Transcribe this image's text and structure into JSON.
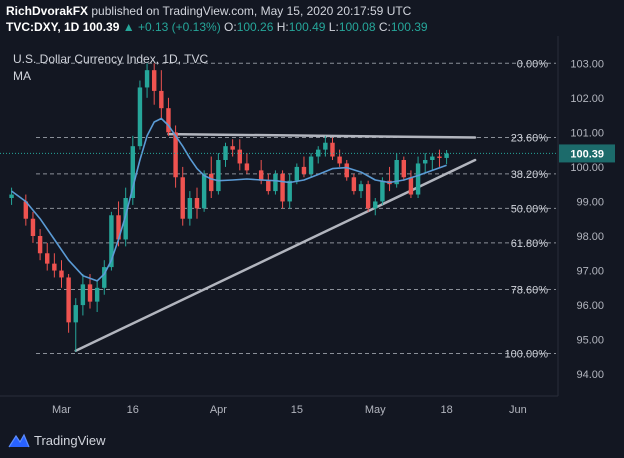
{
  "publish": {
    "author": "RichDvorakFX",
    "text": "published on TradingView.com, May 15, 2020 20:17:59 UTC"
  },
  "quote": {
    "symbol": "TVC:DXY, 1D",
    "last": "100.39",
    "change": "▲ +0.13 (+0.13%)",
    "o_label": "O:",
    "o": "100.26",
    "h_label": "H:",
    "h": "100.49",
    "l_label": "L:",
    "l": "100.08",
    "c_label": "C:",
    "c": "100.39"
  },
  "footer": {
    "brand": "TradingView"
  },
  "colors": {
    "bg": "#131722",
    "up": "#26a69a",
    "down": "#ef5350",
    "ma": "#5b9bd5",
    "fib": "#8a8f98",
    "trend": "#b2b5be",
    "text": "#d1d4dc",
    "axis": "#b2b5be",
    "last_price_bg": "#1c6b6b"
  },
  "chart_data": {
    "type": "candlestick",
    "title": "U.S. Dollar Currency Index, 1D, TVC",
    "legend_ma": "MA",
    "y_ticks": [
      "103.00",
      "102.00",
      "101.00",
      "100.00",
      "99.00",
      "98.00",
      "97.00",
      "96.00",
      "95.00",
      "94.00"
    ],
    "y_tick_values": [
      103,
      102,
      101,
      100,
      99,
      98,
      97,
      96,
      95,
      94
    ],
    "ylim": [
      93.6,
      103.5
    ],
    "x_ticks": [
      {
        "label": "Mar",
        "i": 7
      },
      {
        "label": "16",
        "i": 17
      },
      {
        "label": "Apr",
        "i": 29
      },
      {
        "label": "15",
        "i": 40
      },
      {
        "label": "May",
        "i": 51
      },
      {
        "label": "18",
        "i": 61
      },
      {
        "label": "Jun",
        "i": 71
      }
    ],
    "n_slots": 76,
    "last_price": 100.39,
    "last_price_label": "100.39",
    "fib_levels": [
      {
        "label": "0.00%",
        "value": 103.0
      },
      {
        "label": "23.60%",
        "value": 100.85
      },
      {
        "label": "38.20%",
        "value": 99.8
      },
      {
        "label": "50.00%",
        "value": 98.8
      },
      {
        "label": "61.80%",
        "value": 97.8
      },
      {
        "label": "78.60%",
        "value": 96.45
      },
      {
        "label": "100.00%",
        "value": 94.6
      }
    ],
    "trendlines": [
      {
        "name": "resistance",
        "from": {
          "i": 22,
          "v": 100.95
        },
        "to": {
          "i": 65,
          "v": 100.85
        }
      },
      {
        "name": "support",
        "from": {
          "i": 9,
          "v": 94.68
        },
        "to": {
          "i": 65,
          "v": 100.2
        }
      }
    ],
    "candles": [
      {
        "i": 0,
        "o": 99.1,
        "h": 99.4,
        "l": 98.9,
        "c": 99.2
      },
      {
        "i": 2,
        "o": 99.0,
        "h": 99.2,
        "l": 98.3,
        "c": 98.5
      },
      {
        "i": 3,
        "o": 98.5,
        "h": 98.7,
        "l": 97.8,
        "c": 98.0
      },
      {
        "i": 4,
        "o": 98.0,
        "h": 98.2,
        "l": 97.3,
        "c": 97.5
      },
      {
        "i": 5,
        "o": 97.5,
        "h": 97.8,
        "l": 97.0,
        "c": 97.2
      },
      {
        "i": 6,
        "o": 97.2,
        "h": 97.5,
        "l": 96.8,
        "c": 97.0
      },
      {
        "i": 7,
        "o": 97.0,
        "h": 97.3,
        "l": 96.5,
        "c": 96.8
      },
      {
        "i": 8,
        "o": 96.8,
        "h": 96.9,
        "l": 95.2,
        "c": 95.5
      },
      {
        "i": 9,
        "o": 95.5,
        "h": 96.2,
        "l": 94.65,
        "c": 96.0
      },
      {
        "i": 10,
        "o": 96.0,
        "h": 96.9,
        "l": 95.7,
        "c": 96.6
      },
      {
        "i": 11,
        "o": 96.6,
        "h": 96.9,
        "l": 95.9,
        "c": 96.1
      },
      {
        "i": 12,
        "o": 96.1,
        "h": 96.7,
        "l": 95.8,
        "c": 96.5
      },
      {
        "i": 13,
        "o": 96.5,
        "h": 97.3,
        "l": 96.3,
        "c": 97.1
      },
      {
        "i": 14,
        "o": 97.1,
        "h": 98.7,
        "l": 97.0,
        "c": 98.6
      },
      {
        "i": 15,
        "o": 98.6,
        "h": 99.0,
        "l": 97.7,
        "c": 97.9
      },
      {
        "i": 16,
        "o": 97.9,
        "h": 99.4,
        "l": 97.7,
        "c": 99.1
      },
      {
        "i": 17,
        "o": 99.1,
        "h": 100.9,
        "l": 98.9,
        "c": 100.6
      },
      {
        "i": 18,
        "o": 100.6,
        "h": 102.5,
        "l": 100.5,
        "c": 102.3
      },
      {
        "i": 19,
        "o": 102.3,
        "h": 103.0,
        "l": 102.0,
        "c": 102.8
      },
      {
        "i": 20,
        "o": 102.8,
        "h": 103.0,
        "l": 101.8,
        "c": 102.2
      },
      {
        "i": 21,
        "o": 102.2,
        "h": 102.8,
        "l": 101.4,
        "c": 101.7
      },
      {
        "i": 22,
        "o": 101.7,
        "h": 102.0,
        "l": 100.9,
        "c": 101.0
      },
      {
        "i": 23,
        "o": 101.0,
        "h": 101.2,
        "l": 99.4,
        "c": 99.7
      },
      {
        "i": 24,
        "o": 99.7,
        "h": 100.0,
        "l": 98.3,
        "c": 98.5
      },
      {
        "i": 25,
        "o": 98.5,
        "h": 99.3,
        "l": 98.3,
        "c": 99.1
      },
      {
        "i": 26,
        "o": 99.1,
        "h": 99.4,
        "l": 98.5,
        "c": 98.8
      },
      {
        "i": 27,
        "o": 98.8,
        "h": 99.9,
        "l": 98.7,
        "c": 99.8
      },
      {
        "i": 28,
        "o": 99.8,
        "h": 100.3,
        "l": 99.1,
        "c": 99.3
      },
      {
        "i": 29,
        "o": 99.3,
        "h": 100.4,
        "l": 99.2,
        "c": 100.2
      },
      {
        "i": 30,
        "o": 100.2,
        "h": 100.7,
        "l": 100.0,
        "c": 100.6
      },
      {
        "i": 31,
        "o": 100.6,
        "h": 100.8,
        "l": 100.3,
        "c": 100.5
      },
      {
        "i": 32,
        "o": 100.5,
        "h": 100.8,
        "l": 99.9,
        "c": 100.1
      },
      {
        "i": 33,
        "o": 100.1,
        "h": 100.4,
        "l": 99.8,
        "c": 99.9
      },
      {
        "i": 35,
        "o": 99.9,
        "h": 100.2,
        "l": 99.5,
        "c": 99.6
      },
      {
        "i": 36,
        "o": 99.6,
        "h": 99.8,
        "l": 99.2,
        "c": 99.3
      },
      {
        "i": 37,
        "o": 99.3,
        "h": 99.9,
        "l": 99.2,
        "c": 99.8
      },
      {
        "i": 38,
        "o": 99.8,
        "h": 99.9,
        "l": 98.8,
        "c": 99.0
      },
      {
        "i": 39,
        "o": 99.0,
        "h": 99.8,
        "l": 98.8,
        "c": 99.6
      },
      {
        "i": 40,
        "o": 99.6,
        "h": 100.1,
        "l": 99.5,
        "c": 100.0
      },
      {
        "i": 41,
        "o": 100.0,
        "h": 100.3,
        "l": 99.7,
        "c": 99.8
      },
      {
        "i": 42,
        "o": 99.8,
        "h": 100.4,
        "l": 99.7,
        "c": 100.3
      },
      {
        "i": 43,
        "o": 100.3,
        "h": 100.6,
        "l": 100.1,
        "c": 100.5
      },
      {
        "i": 44,
        "o": 100.5,
        "h": 100.9,
        "l": 100.3,
        "c": 100.7
      },
      {
        "i": 45,
        "o": 100.7,
        "h": 100.85,
        "l": 100.2,
        "c": 100.3
      },
      {
        "i": 46,
        "o": 100.3,
        "h": 100.5,
        "l": 100.0,
        "c": 100.1
      },
      {
        "i": 47,
        "o": 100.1,
        "h": 100.2,
        "l": 99.6,
        "c": 99.7
      },
      {
        "i": 48,
        "o": 99.7,
        "h": 99.8,
        "l": 99.2,
        "c": 99.3
      },
      {
        "i": 49,
        "o": 99.3,
        "h": 99.6,
        "l": 99.1,
        "c": 99.5
      },
      {
        "i": 50,
        "o": 99.5,
        "h": 99.6,
        "l": 98.7,
        "c": 98.8
      },
      {
        "i": 51,
        "o": 98.8,
        "h": 99.1,
        "l": 98.6,
        "c": 99.0
      },
      {
        "i": 52,
        "o": 99.0,
        "h": 99.7,
        "l": 98.9,
        "c": 99.6
      },
      {
        "i": 53,
        "o": 99.6,
        "h": 100.0,
        "l": 99.3,
        "c": 99.5
      },
      {
        "i": 54,
        "o": 99.5,
        "h": 100.4,
        "l": 99.4,
        "c": 100.2
      },
      {
        "i": 55,
        "o": 100.2,
        "h": 100.3,
        "l": 99.6,
        "c": 99.7
      },
      {
        "i": 56,
        "o": 99.7,
        "h": 99.9,
        "l": 99.1,
        "c": 99.2
      },
      {
        "i": 57,
        "o": 99.2,
        "h": 100.3,
        "l": 99.1,
        "c": 100.1
      },
      {
        "i": 58,
        "o": 100.1,
        "h": 100.4,
        "l": 99.8,
        "c": 100.2
      },
      {
        "i": 59,
        "o": 100.2,
        "h": 100.4,
        "l": 99.9,
        "c": 100.3
      },
      {
        "i": 60,
        "o": 100.3,
        "h": 100.5,
        "l": 100.0,
        "c": 100.26
      },
      {
        "i": 61,
        "o": 100.26,
        "h": 100.49,
        "l": 100.08,
        "c": 100.39
      }
    ],
    "ma_series": [
      {
        "i": 0,
        "v": 99.3
      },
      {
        "i": 2,
        "v": 99.0
      },
      {
        "i": 4,
        "v": 98.5
      },
      {
        "i": 6,
        "v": 97.9
      },
      {
        "i": 8,
        "v": 97.3
      },
      {
        "i": 10,
        "v": 96.85
      },
      {
        "i": 12,
        "v": 96.7
      },
      {
        "i": 13,
        "v": 96.9
      },
      {
        "i": 14,
        "v": 97.3
      },
      {
        "i": 15,
        "v": 97.9
      },
      {
        "i": 16,
        "v": 98.6
      },
      {
        "i": 17,
        "v": 99.4
      },
      {
        "i": 18,
        "v": 100.2
      },
      {
        "i": 19,
        "v": 100.9
      },
      {
        "i": 20,
        "v": 101.3
      },
      {
        "i": 21,
        "v": 101.4
      },
      {
        "i": 22,
        "v": 101.2
      },
      {
        "i": 23,
        "v": 100.9
      },
      {
        "i": 24,
        "v": 100.6
      },
      {
        "i": 25,
        "v": 100.25
      },
      {
        "i": 26,
        "v": 99.95
      },
      {
        "i": 27,
        "v": 99.75
      },
      {
        "i": 28,
        "v": 99.65
      },
      {
        "i": 29,
        "v": 99.6
      },
      {
        "i": 31,
        "v": 99.62
      },
      {
        "i": 33,
        "v": 99.65
      },
      {
        "i": 35,
        "v": 99.62
      },
      {
        "i": 37,
        "v": 99.6
      },
      {
        "i": 39,
        "v": 99.55
      },
      {
        "i": 41,
        "v": 99.62
      },
      {
        "i": 43,
        "v": 99.78
      },
      {
        "i": 45,
        "v": 99.95
      },
      {
        "i": 47,
        "v": 99.98
      },
      {
        "i": 49,
        "v": 99.85
      },
      {
        "i": 51,
        "v": 99.62
      },
      {
        "i": 53,
        "v": 99.55
      },
      {
        "i": 55,
        "v": 99.62
      },
      {
        "i": 57,
        "v": 99.75
      },
      {
        "i": 59,
        "v": 99.9
      },
      {
        "i": 61,
        "v": 100.05
      }
    ]
  }
}
